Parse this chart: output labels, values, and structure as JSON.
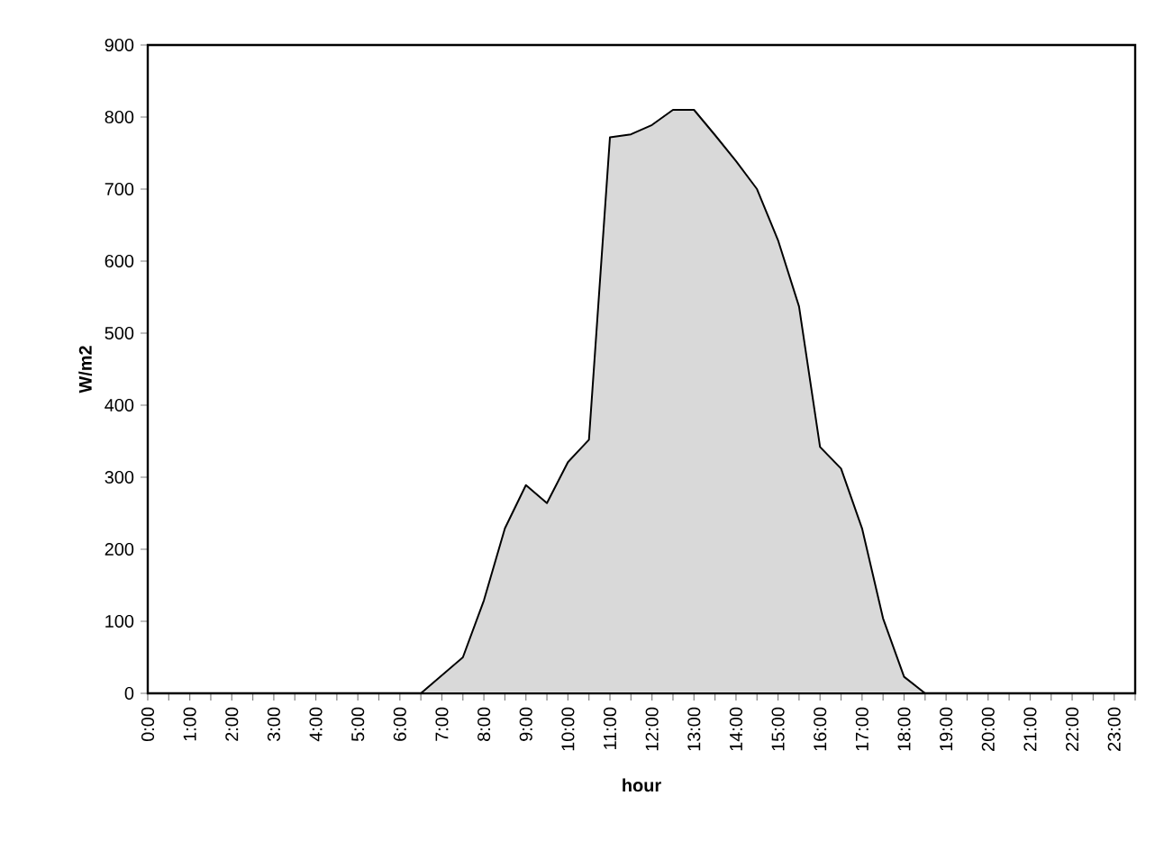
{
  "chart_data": {
    "type": "area",
    "xlabel": "hour",
    "ylabel": "W/m2",
    "categories": [
      "0:00",
      null,
      "1:00",
      null,
      "2:00",
      null,
      "3:00",
      null,
      "4:00",
      null,
      "5:00",
      null,
      "6:00",
      null,
      "7:00",
      null,
      "8:00",
      null,
      "9:00",
      null,
      "10:00",
      null,
      "11:00",
      null,
      "12:00",
      null,
      "13:00",
      null,
      "14:00",
      null,
      "15:00",
      null,
      "16:00",
      null,
      "17:00",
      null,
      "18:00",
      null,
      "19:00",
      null,
      "20:00",
      null,
      "21:00",
      null,
      "22:00",
      null,
      "23:00",
      null
    ],
    "values": [
      null,
      null,
      null,
      null,
      null,
      null,
      null,
      null,
      null,
      null,
      null,
      null,
      0,
      0,
      25,
      50,
      129,
      229,
      289,
      264,
      321,
      352,
      772,
      776,
      789,
      810,
      810,
      775,
      739,
      700,
      629,
      537,
      342,
      312,
      229,
      104,
      23,
      0,
      null,
      null,
      null,
      null,
      null,
      null,
      null,
      null,
      null,
      null
    ],
    "color": "#d9d9d9",
    "ylim": [
      0,
      900
    ],
    "yticks": [
      0,
      100,
      200,
      300,
      400,
      500,
      600,
      700,
      800,
      900
    ],
    "grid": false
  }
}
